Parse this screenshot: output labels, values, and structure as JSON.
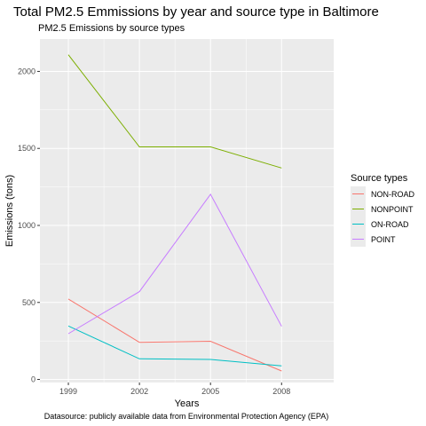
{
  "chart_data": {
    "type": "line",
    "title": "Total PM2.5 Emmissions by year and source type in Baltimore",
    "subtitle": "PM2.5 Emissions by source types",
    "xlabel": "Years",
    "ylabel": "Emissions (tons)",
    "caption": "Datasource: publicly available data from Environmental Protection Agency (EPA)",
    "x": [
      1999,
      2002,
      2005,
      2008
    ],
    "xlim": [
      1997.8,
      2010.2
    ],
    "ylim": [
      -20,
      2210
    ],
    "yticks": [
      0,
      500,
      1000,
      1500,
      2000
    ],
    "xticks": [
      1999,
      2002,
      2005,
      2008
    ],
    "grid": true,
    "legend_title": "Source types",
    "legend_position": "right",
    "series": [
      {
        "name": "NON-ROAD",
        "color": "#F8766D",
        "values": [
          522,
          241,
          248,
          55
        ]
      },
      {
        "name": "NONPOINT",
        "color": "#7CAE00",
        "values": [
          2108,
          1510,
          1510,
          1373
        ]
      },
      {
        "name": "ON-ROAD",
        "color": "#00BFC4",
        "values": [
          347,
          134,
          130,
          88
        ]
      },
      {
        "name": "POINT",
        "color": "#C77CFF",
        "values": [
          297,
          570,
          1202,
          345
        ]
      }
    ]
  }
}
